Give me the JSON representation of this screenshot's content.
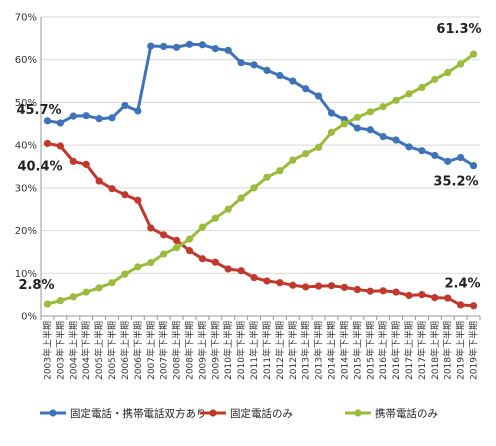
{
  "chart_data": {
    "type": "line",
    "title": "",
    "xlabel": "",
    "ylabel": "",
    "ylim": [
      0,
      70
    ],
    "yticks": [
      "0%",
      "10%",
      "20%",
      "30%",
      "40%",
      "50%",
      "60%",
      "70%"
    ],
    "ytick_values": [
      0,
      10,
      20,
      30,
      40,
      50,
      60,
      70
    ],
    "grid": true,
    "legend_position": "bottom",
    "categories": [
      "2003年上半期",
      "2003年下半期",
      "2004年上半期",
      "2004年下半期",
      "2005年上半期",
      "2005年下半期",
      "2006年上半期",
      "2006年下半期",
      "2007年上半期",
      "2007年下半期",
      "2008年上半期",
      "2008年下半期",
      "2009年上半期",
      "2009年下半期",
      "2010年上半期",
      "2010年下半期",
      "2011年上半期",
      "2011年下半期",
      "2012年上半期",
      "2012年下半期",
      "2013年上半期",
      "2013年下半期",
      "2014年上半期",
      "2014年下半期",
      "2015年上半期",
      "2015年下半期",
      "2016年上半期",
      "2016年下半期",
      "2017年上半期",
      "2017年下半期",
      "2018年上半期",
      "2018年下半期",
      "2019年上半期",
      "2019年下半期"
    ],
    "series": [
      {
        "name": "固定電話・携帯電話双方あり",
        "color": "#3e73b9",
        "values": [
          45.7,
          45.2,
          46.8,
          46.9,
          46.2,
          46.4,
          49.3,
          48.0,
          63.2,
          63.1,
          62.9,
          63.6,
          63.5,
          62.6,
          62.2,
          59.3,
          58.8,
          57.5,
          56.3,
          55.0,
          53.2,
          51.5,
          47.5,
          46.0,
          44.0,
          43.6,
          42.0,
          41.2,
          39.6,
          38.7,
          37.6,
          36.2,
          37.1,
          35.2
        ]
      },
      {
        "name": "固定電話のみ",
        "color": "#c0392b",
        "values": [
          40.4,
          39.8,
          36.2,
          35.5,
          31.6,
          29.8,
          28.4,
          27.1,
          20.6,
          19.0,
          17.7,
          15.3,
          13.4,
          12.6,
          11.0,
          10.6,
          9.0,
          8.2,
          7.8,
          7.2,
          6.8,
          7.0,
          7.1,
          6.7,
          6.2,
          5.8,
          5.9,
          5.6,
          4.8,
          5.0,
          4.3,
          4.2,
          2.6,
          2.4
        ]
      },
      {
        "name": "携帯電話のみ",
        "color": "#9bbb3b",
        "values": [
          2.8,
          3.6,
          4.5,
          5.6,
          6.6,
          7.8,
          9.8,
          11.5,
          12.5,
          14.5,
          16.0,
          18.0,
          20.8,
          22.9,
          25.0,
          27.6,
          30.0,
          32.5,
          34.0,
          36.5,
          38.0,
          39.5,
          43.0,
          45.0,
          46.5,
          47.8,
          49.0,
          50.5,
          52.0,
          53.5,
          55.4,
          57.0,
          59.0,
          61.3
        ]
      }
    ],
    "annotations": [
      {
        "series": 0,
        "index": 0,
        "text": "45.7%"
      },
      {
        "series": 1,
        "index": 0,
        "text": "40.4%"
      },
      {
        "series": 2,
        "index": 0,
        "text": "2.8%"
      },
      {
        "series": 0,
        "index": 33,
        "text": "35.2%"
      },
      {
        "series": 1,
        "index": 33,
        "text": "2.4%"
      },
      {
        "series": 2,
        "index": 33,
        "text": "61.3%"
      }
    ]
  }
}
